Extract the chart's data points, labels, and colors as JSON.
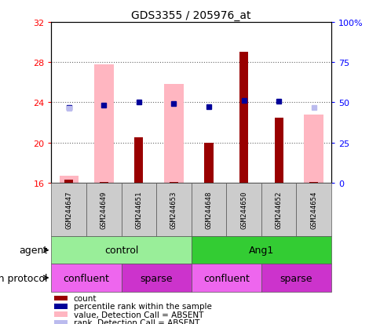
{
  "title": "GDS3355 / 205976_at",
  "samples": [
    "GSM244647",
    "GSM244649",
    "GSM244651",
    "GSM244653",
    "GSM244648",
    "GSM244650",
    "GSM244652",
    "GSM244654"
  ],
  "count_values": [
    16.3,
    16.1,
    20.5,
    16.1,
    20.0,
    29.0,
    22.5,
    16.1
  ],
  "rank_values": [
    23.5,
    23.7,
    24.0,
    23.9,
    23.6,
    24.2,
    24.1,
    null
  ],
  "absent_value_bars": [
    16.7,
    27.8,
    16.1,
    25.8,
    16.1,
    16.1,
    16.1,
    22.8
  ],
  "absent_rank_dots": [
    23.4,
    null,
    null,
    null,
    null,
    null,
    null,
    23.5
  ],
  "absent_flags": [
    true,
    true,
    false,
    true,
    false,
    false,
    false,
    true
  ],
  "count_absent_flags": [
    false,
    false,
    false,
    false,
    false,
    false,
    false,
    false
  ],
  "ylim_left": [
    16,
    32
  ],
  "ylim_right": [
    0,
    100
  ],
  "yticks_left": [
    16,
    20,
    24,
    28,
    32
  ],
  "yticks_right": [
    0,
    25,
    50,
    75,
    100
  ],
  "yticklabels_right": [
    "0",
    "25",
    "50",
    "75",
    "100%"
  ],
  "agent_groups": [
    {
      "label": "control",
      "start": 0,
      "end": 4,
      "color": "#99EE99"
    },
    {
      "label": "Ang1",
      "start": 4,
      "end": 8,
      "color": "#33CC33"
    }
  ],
  "growth_groups": [
    {
      "label": "confluent",
      "start": 0,
      "end": 2,
      "color": "#EE66EE"
    },
    {
      "label": "sparse",
      "start": 2,
      "end": 4,
      "color": "#CC33CC"
    },
    {
      "label": "confluent",
      "start": 4,
      "end": 6,
      "color": "#EE66EE"
    },
    {
      "label": "sparse",
      "start": 6,
      "end": 8,
      "color": "#CC33CC"
    }
  ],
  "count_color": "#990000",
  "rank_color": "#000099",
  "absent_value_color": "#FFB6C1",
  "absent_rank_color": "#BBBBEE",
  "grid_color": "#666666",
  "absent_bar_width": 0.55,
  "count_bar_width": 0.25,
  "legend_items": [
    {
      "label": "count",
      "color": "#990000"
    },
    {
      "label": "percentile rank within the sample",
      "color": "#000099"
    },
    {
      "label": "value, Detection Call = ABSENT",
      "color": "#FFB6C1"
    },
    {
      "label": "rank, Detection Call = ABSENT",
      "color": "#BBBBEE"
    }
  ]
}
